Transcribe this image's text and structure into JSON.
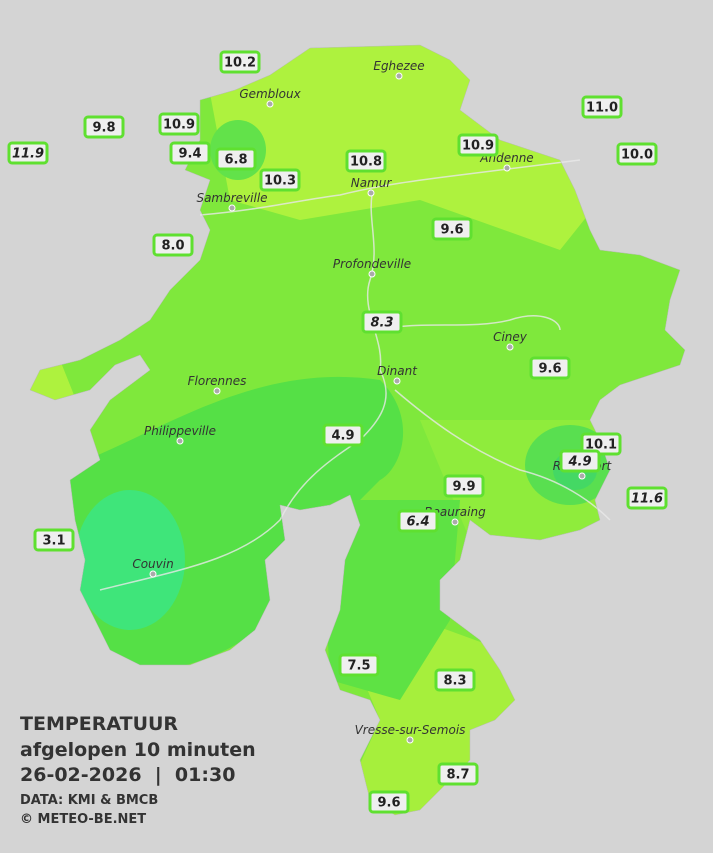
{
  "legend": {
    "title": "TEMPERATUUR",
    "subtitle": "afgelopen 10 minuten",
    "datetime": "26-02-2026  |  01:30",
    "source": "DATA: KMI & BMCB",
    "copyright": "© METEO-BE.NET"
  },
  "towns": [
    "Eghezee",
    "Gembloux",
    "Andenne",
    "Namur",
    "Sambreville",
    "Profondeville",
    "Ciney",
    "Dinant",
    "Florennes",
    "Philippeville",
    "Rochefort",
    "Beauraing",
    "Couvin",
    "Vresse-sur-Semois"
  ],
  "stations": [
    "10.2",
    "9.8",
    "10.9",
    "11.9",
    "9.4",
    "6.8",
    "10.3",
    "10.8",
    "10.9",
    "11.0",
    "10.0",
    "8.0",
    "9.6",
    "8.3",
    "9.6",
    "4.9",
    "10.1",
    "4.9",
    "11.6",
    "9.9",
    "6.4",
    "3.1",
    "7.5",
    "8.3",
    "8.7",
    "9.6"
  ]
}
